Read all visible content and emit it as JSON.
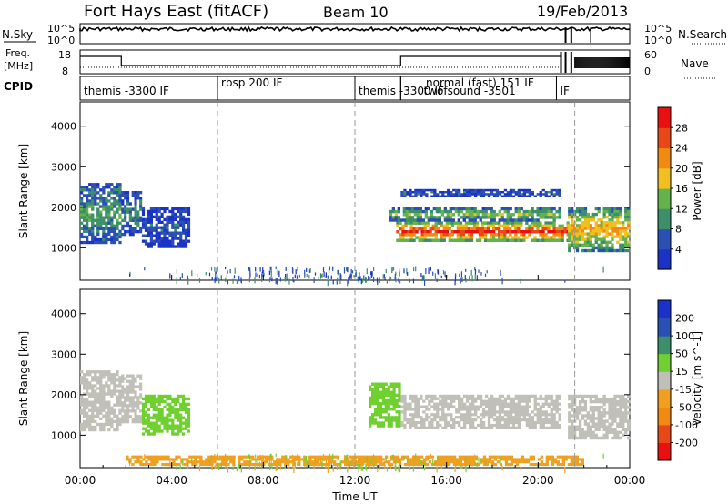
{
  "header": {
    "station": "Fort Hays East (fitACF)",
    "beam": "Beam 10",
    "date": "19/Feb/2013"
  },
  "noise_panel": {
    "left_label": "N.Sky",
    "right_label": "N.Search",
    "tick_labels": [
      "10^5",
      "10^0"
    ]
  },
  "freq_panel": {
    "left_label_line1": "Freq.",
    "left_label_line2": "[MHz]",
    "right_label": "Nave",
    "left_ticks": [
      "18",
      "8"
    ],
    "right_ticks": [
      "60",
      "0"
    ]
  },
  "cpid_panel": {
    "label": "CPID",
    "segments": [
      {
        "label": "themis -3300 IF",
        "start_hour": 0.0,
        "end_hour": 6.0
      },
      {
        "label": "rbsp 200 IF",
        "start_hour": 6.0,
        "end_hour": 12.0
      },
      {
        "label": "themis -3300 IF",
        "start_hour": 12.0,
        "end_hour": 14.0
      },
      {
        "label": "twofsound -3501",
        "start_hour": 14.0,
        "end_hour": 20.8
      },
      {
        "label": "normal (fast) 151 IF",
        "start_hour": 14.0,
        "end_hour": 20.8
      },
      {
        "label": "IF",
        "start_hour": 20.8,
        "end_hour": 21.6
      }
    ]
  },
  "chart_data": [
    {
      "type": "heatmap",
      "name": "power-panel",
      "ylabel": "Slant Range [km]",
      "y_ticks": [
        1000,
        2000,
        3000,
        4000
      ],
      "ylim": [
        200,
        4600
      ],
      "colorbar": {
        "title": "Power [dB]",
        "ticks": [
          4,
          8,
          12,
          16,
          20,
          24,
          28
        ],
        "range": [
          0,
          30
        ],
        "colors": [
          "#1a32c8",
          "#2a50b4",
          "#3c8f6a",
          "#63b24a",
          "#f0c020",
          "#f08a10",
          "#e84818",
          "#e81010"
        ]
      },
      "regions": [
        {
          "x0": 0.0,
          "x1": 1.8,
          "y0": 1100,
          "y1": 2600,
          "level": 10
        },
        {
          "x0": 1.8,
          "x1": 2.7,
          "y0": 1300,
          "y1": 2400,
          "level": 8
        },
        {
          "x0": 2.7,
          "x1": 4.8,
          "y0": 1000,
          "y1": 2000,
          "level": 5
        },
        {
          "x0": 13.8,
          "x1": 21.6,
          "y0": 1150,
          "y1": 1650,
          "level": 26
        },
        {
          "x0": 13.5,
          "x1": 21.0,
          "y0": 1650,
          "y1": 2000,
          "level": 14
        },
        {
          "x0": 14.0,
          "x1": 21.0,
          "y0": 2250,
          "y1": 2450,
          "level": 6
        },
        {
          "x0": 21.3,
          "x1": 24.0,
          "y0": 900,
          "y1": 2000,
          "level": 18
        }
      ]
    },
    {
      "type": "heatmap",
      "name": "velocity-panel",
      "xlabel": "Time UT",
      "ylabel": "Slant Range [km]",
      "y_ticks": [
        1000,
        2000,
        3000,
        4000
      ],
      "ylim": [
        200,
        4600
      ],
      "x_ticks": [
        "00:00",
        "04:00",
        "08:00",
        "12:00",
        "16:00",
        "20:00",
        "00:00"
      ],
      "xlim": [
        0,
        24
      ],
      "colorbar": {
        "title": "Velocity [m s^-1]",
        "ticks": [
          200,
          100,
          50,
          15,
          -15,
          -50,
          -100,
          -200
        ],
        "colors": [
          "#1a32c8",
          "#2a50b4",
          "#3c8f6a",
          "#6fd030",
          "#c0c0b8",
          "#f0a020",
          "#f08a10",
          "#e84818",
          "#e81010"
        ]
      },
      "regions": [
        {
          "x0": 0.0,
          "x1": 1.8,
          "y0": 1100,
          "y1": 2600,
          "vel": 0
        },
        {
          "x0": 1.8,
          "x1": 2.7,
          "y0": 1300,
          "y1": 2500,
          "vel": 0
        },
        {
          "x0": 2.7,
          "x1": 4.8,
          "y0": 1000,
          "y1": 2000,
          "vel": 40
        },
        {
          "x0": 12.6,
          "x1": 14.0,
          "y0": 1200,
          "y1": 2300,
          "vel": 40
        },
        {
          "x0": 14.0,
          "x1": 21.0,
          "y0": 1150,
          "y1": 2000,
          "vel": 0
        },
        {
          "x0": 21.3,
          "x1": 24.0,
          "y0": 900,
          "y1": 2000,
          "vel": 0
        },
        {
          "x0": 2.0,
          "x1": 22.0,
          "y0": 250,
          "y1": 500,
          "vel": -40
        }
      ]
    }
  ]
}
